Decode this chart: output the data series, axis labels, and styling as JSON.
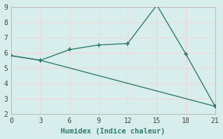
{
  "line1_x": [
    0,
    3,
    6,
    9,
    12,
    15,
    18,
    21
  ],
  "line1_y": [
    5.8,
    5.5,
    6.2,
    6.5,
    6.6,
    9.1,
    5.9,
    2.5
  ],
  "line2_x": [
    0,
    3,
    21
  ],
  "line2_y": [
    5.8,
    5.5,
    2.5
  ],
  "line_color": "#2e7b6e",
  "bg_color": "#d8eeec",
  "grid_color": "#f0d8d8",
  "xlabel": "Humidex (Indice chaleur)",
  "xlim": [
    0,
    21
  ],
  "ylim": [
    2,
    9
  ],
  "xticks": [
    0,
    3,
    6,
    9,
    12,
    15,
    18,
    21
  ],
  "yticks": [
    2,
    3,
    4,
    5,
    6,
    7,
    8,
    9
  ],
  "font_family": "monospace",
  "tick_fontsize": 7,
  "xlabel_fontsize": 7.5
}
